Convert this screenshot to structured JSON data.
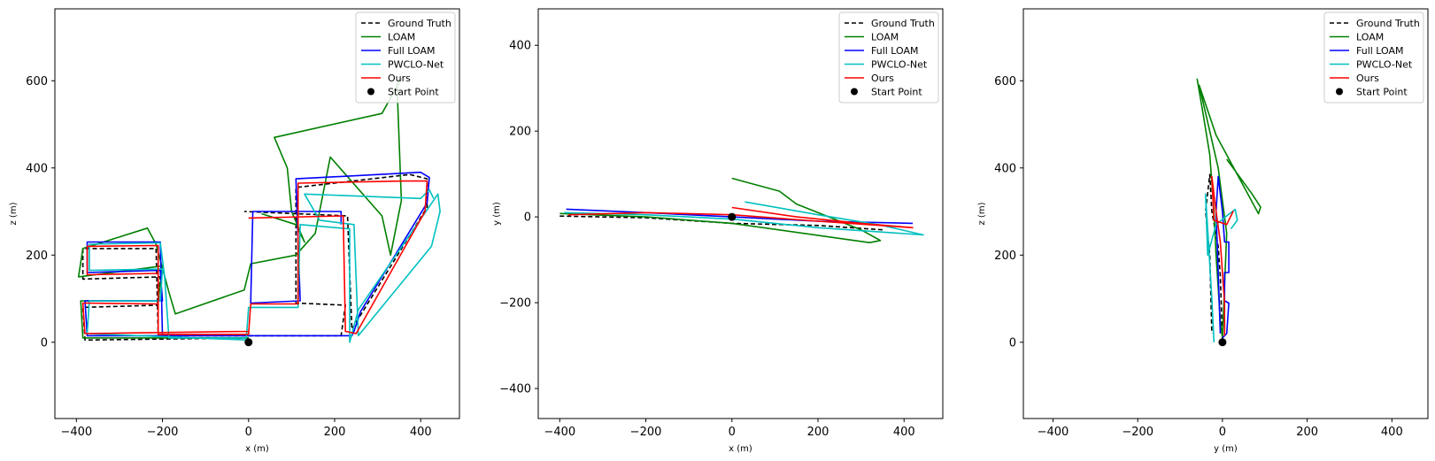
{
  "chart_data": [
    {
      "type": "line",
      "panel": "x-z",
      "xlabel": "x (m)",
      "ylabel": "z (m)",
      "xlim": [
        -450,
        490
      ],
      "ylim": [
        -175,
        765
      ],
      "xticks": [
        -400,
        -200,
        0,
        200,
        400
      ],
      "yticks": [
        0,
        200,
        400,
        600
      ],
      "xtick_labels": [
        "−400",
        "−200",
        "0",
        "200",
        "400"
      ],
      "ytick_labels": [
        "0",
        "200",
        "400",
        "600"
      ],
      "legend_position": "top-right",
      "series": [
        {
          "name": "Ground Truth",
          "color": "#000000",
          "style": "dashed",
          "points": [
            [
              0,
              10
            ],
            [
              -380,
              5
            ],
            [
              -385,
              80
            ],
            [
              -210,
              85
            ],
            [
              -205,
              150
            ],
            [
              -385,
              145
            ],
            [
              -385,
              215
            ],
            [
              -215,
              215
            ],
            [
              -210,
              15
            ],
            [
              215,
              15
            ],
            [
              225,
              85
            ],
            [
              110,
              90
            ],
            [
              110,
              355
            ],
            [
              375,
              385
            ],
            [
              415,
              375
            ],
            [
              415,
              310
            ],
            [
              240,
              30
            ],
            [
              230,
              290
            ],
            [
              -10,
              300
            ]
          ]
        },
        {
          "name": "LOAM",
          "color": "#008000",
          "style": "solid",
          "points": [
            [
              0,
              10
            ],
            [
              -385,
              10
            ],
            [
              -390,
              95
            ],
            [
              -210,
              95
            ],
            [
              -200,
              175
            ],
            [
              -395,
              150
            ],
            [
              -385,
              215
            ],
            [
              -235,
              262
            ],
            [
              -215,
              225
            ],
            [
              -185,
              115
            ],
            [
              -170,
              65
            ],
            [
              -10,
              120
            ],
            [
              5,
              180
            ],
            [
              110,
              200
            ],
            [
              155,
              250
            ],
            [
              190,
              425
            ],
            [
              310,
              290
            ],
            [
              330,
              200
            ],
            [
              355,
              325
            ],
            [
              345,
              590
            ],
            [
              355,
              605
            ],
            [
              310,
              525
            ],
            [
              60,
              470
            ],
            [
              90,
              400
            ],
            [
              100,
              300
            ],
            [
              130,
              230
            ],
            [
              110,
              270
            ],
            [
              30,
              295
            ]
          ]
        },
        {
          "name": "Full LOAM",
          "color": "#0000ff",
          "style": "solid",
          "points": [
            [
              0,
              15
            ],
            [
              -375,
              15
            ],
            [
              -380,
              95
            ],
            [
              -200,
              95
            ],
            [
              -205,
              165
            ],
            [
              -375,
              160
            ],
            [
              -375,
              230
            ],
            [
              -205,
              230
            ],
            [
              -200,
              15
            ],
            [
              240,
              15
            ],
            [
              245,
              25
            ],
            [
              260,
              70
            ],
            [
              415,
              320
            ],
            [
              420,
              378
            ],
            [
              400,
              390
            ],
            [
              110,
              375
            ],
            [
              120,
              95
            ],
            [
              5,
              90
            ],
            [
              10,
              300
            ],
            [
              215,
              300
            ],
            [
              215,
              270
            ]
          ]
        },
        {
          "name": "PWCLO-Net",
          "color": "#00c0c0",
          "style": "solid",
          "points": [
            [
              0,
              5
            ],
            [
              -375,
              20
            ],
            [
              -370,
              95
            ],
            [
              -205,
              95
            ],
            [
              -200,
              168
            ],
            [
              -370,
              165
            ],
            [
              -370,
              225
            ],
            [
              -205,
              228
            ],
            [
              -195,
              150
            ],
            [
              -185,
              10
            ],
            [
              -5,
              10
            ],
            [
              0,
              80
            ],
            [
              115,
              80
            ],
            [
              120,
              270
            ],
            [
              235,
              260
            ],
            [
              235,
              0
            ],
            [
              255,
              75
            ],
            [
              440,
              340
            ],
            [
              445,
              300
            ],
            [
              425,
              220
            ],
            [
              255,
              15
            ],
            [
              245,
              270
            ],
            [
              165,
              280
            ],
            [
              130,
              340
            ],
            [
              400,
              330
            ],
            [
              420,
              350
            ],
            [
              430,
              330
            ]
          ]
        },
        {
          "name": "Ours",
          "color": "#ff0000",
          "style": "solid",
          "points": [
            [
              0,
              25
            ],
            [
              -380,
              20
            ],
            [
              -385,
              90
            ],
            [
              -210,
              88
            ],
            [
              -210,
              158
            ],
            [
              -375,
              155
            ],
            [
              -375,
              220
            ],
            [
              -210,
              222
            ],
            [
              -210,
              18
            ],
            [
              0,
              18
            ],
            [
              5,
              88
            ],
            [
              115,
              88
            ],
            [
              115,
              365
            ],
            [
              360,
              370
            ],
            [
              415,
              370
            ],
            [
              410,
              300
            ],
            [
              250,
              20
            ],
            [
              225,
              25
            ],
            [
              220,
              290
            ],
            [
              0,
              285
            ]
          ]
        }
      ],
      "start_point": {
        "name": "Start Point",
        "x": 0,
        "y": 0
      }
    },
    {
      "type": "line",
      "panel": "x-y",
      "xlabel": "x (m)",
      "ylabel": "y (m)",
      "xlim": [
        -450,
        490
      ],
      "ylim": [
        -470,
        485
      ],
      "xticks": [
        -400,
        -200,
        0,
        200,
        400
      ],
      "yticks": [
        -400,
        -200,
        0,
        200,
        400
      ],
      "xtick_labels": [
        "−400",
        "−200",
        "0",
        "200",
        "400"
      ],
      "ytick_labels": [
        "−400",
        "−200",
        "0",
        "200",
        "400"
      ],
      "legend_position": "top-right",
      "series": [
        {
          "name": "Ground Truth",
          "color": "#000000",
          "style": "dashed",
          "points": [
            [
              -400,
              2
            ],
            [
              -200,
              -2
            ],
            [
              0,
              -15
            ],
            [
              200,
              -20
            ],
            [
              350,
              -30
            ]
          ]
        },
        {
          "name": "LOAM",
          "color": "#008000",
          "style": "solid",
          "points": [
            [
              -400,
              8
            ],
            [
              -200,
              0
            ],
            [
              0,
              -15
            ],
            [
              250,
              -50
            ],
            [
              320,
              -60
            ],
            [
              345,
              -55
            ],
            [
              300,
              -30
            ],
            [
              200,
              10
            ],
            [
              150,
              30
            ],
            [
              110,
              60
            ],
            [
              0,
              90
            ]
          ]
        },
        {
          "name": "Full LOAM",
          "color": "#0000ff",
          "style": "solid",
          "points": [
            [
              -385,
              18
            ],
            [
              -200,
              10
            ],
            [
              0,
              0
            ],
            [
              200,
              -10
            ],
            [
              420,
              -15
            ]
          ]
        },
        {
          "name": "PWCLO-Net",
          "color": "#00c0c0",
          "style": "solid",
          "points": [
            [
              -390,
              10
            ],
            [
              -200,
              5
            ],
            [
              0,
              -5
            ],
            [
              200,
              -25
            ],
            [
              445,
              -42
            ],
            [
              350,
              -20
            ],
            [
              200,
              5
            ],
            [
              30,
              35
            ]
          ]
        },
        {
          "name": "Ours",
          "color": "#ff0000",
          "style": "solid",
          "points": [
            [
              -380,
              5
            ],
            [
              -200,
              10
            ],
            [
              0,
              5
            ],
            [
              200,
              -10
            ],
            [
              420,
              -25
            ],
            [
              300,
              -15
            ],
            [
              150,
              0
            ],
            [
              0,
              22
            ]
          ]
        }
      ],
      "start_point": {
        "name": "Start Point",
        "x": 0,
        "y": 0
      }
    },
    {
      "type": "line",
      "panel": "y-z",
      "xlabel": "y (m)",
      "ylabel": "z (m)",
      "xlim": [
        -470,
        485
      ],
      "ylim": [
        -175,
        765
      ],
      "xticks": [
        -400,
        -200,
        0,
        200,
        400
      ],
      "yticks": [
        0,
        200,
        400,
        600
      ],
      "xtick_labels": [
        "−400",
        "−200",
        "0",
        "200",
        "400"
      ],
      "ytick_labels": [
        "0",
        "200",
        "400",
        "600"
      ],
      "legend_position": "top-right",
      "series": [
        {
          "name": "Ground Truth",
          "color": "#000000",
          "style": "dashed",
          "points": [
            [
              0,
              5
            ],
            [
              -5,
              150
            ],
            [
              -10,
              220
            ],
            [
              -25,
              300
            ],
            [
              -30,
              385
            ],
            [
              -40,
              300
            ],
            [
              -30,
              200
            ],
            [
              -25,
              20
            ]
          ]
        },
        {
          "name": "LOAM",
          "color": "#008000",
          "style": "solid",
          "points": [
            [
              -60,
              605
            ],
            [
              -45,
              520
            ],
            [
              -30,
              430
            ],
            [
              -20,
              300
            ],
            [
              -15,
              200
            ],
            [
              -5,
              50
            ],
            [
              0,
              10
            ],
            [
              10,
              250
            ],
            [
              -10,
              400
            ],
            [
              -55,
              590
            ],
            [
              -15,
              475
            ],
            [
              85,
              295
            ],
            [
              90,
              310
            ],
            [
              70,
              340
            ],
            [
              10,
              420
            ]
          ]
        },
        {
          "name": "Full LOAM",
          "color": "#0000ff",
          "style": "solid",
          "points": [
            [
              0,
              10
            ],
            [
              10,
              20
            ],
            [
              15,
              90
            ],
            [
              5,
              95
            ],
            [
              5,
              160
            ],
            [
              15,
              160
            ],
            [
              15,
              230
            ],
            [
              5,
              230
            ],
            [
              0,
              300
            ],
            [
              -10,
              380
            ],
            [
              -15,
              300
            ],
            [
              -5,
              20
            ]
          ]
        },
        {
          "name": "PWCLO-Net",
          "color": "#00c0c0",
          "style": "solid",
          "points": [
            [
              -20,
              0
            ],
            [
              -25,
              100
            ],
            [
              -40,
              340
            ],
            [
              -35,
              200
            ],
            [
              -15,
              270
            ],
            [
              10,
              290
            ],
            [
              30,
              305
            ],
            [
              35,
              280
            ],
            [
              20,
              260
            ]
          ]
        },
        {
          "name": "Ours",
          "color": "#ff0000",
          "style": "solid",
          "points": [
            [
              5,
              15
            ],
            [
              5,
              90
            ],
            [
              0,
              160
            ],
            [
              -5,
              230
            ],
            [
              -15,
              300
            ],
            [
              -25,
              380
            ],
            [
              -20,
              280
            ],
            [
              10,
              270
            ],
            [
              25,
              300
            ],
            [
              20,
              290
            ]
          ]
        }
      ],
      "start_point": {
        "name": "Start Point",
        "x": 0,
        "y": 0
      }
    }
  ]
}
